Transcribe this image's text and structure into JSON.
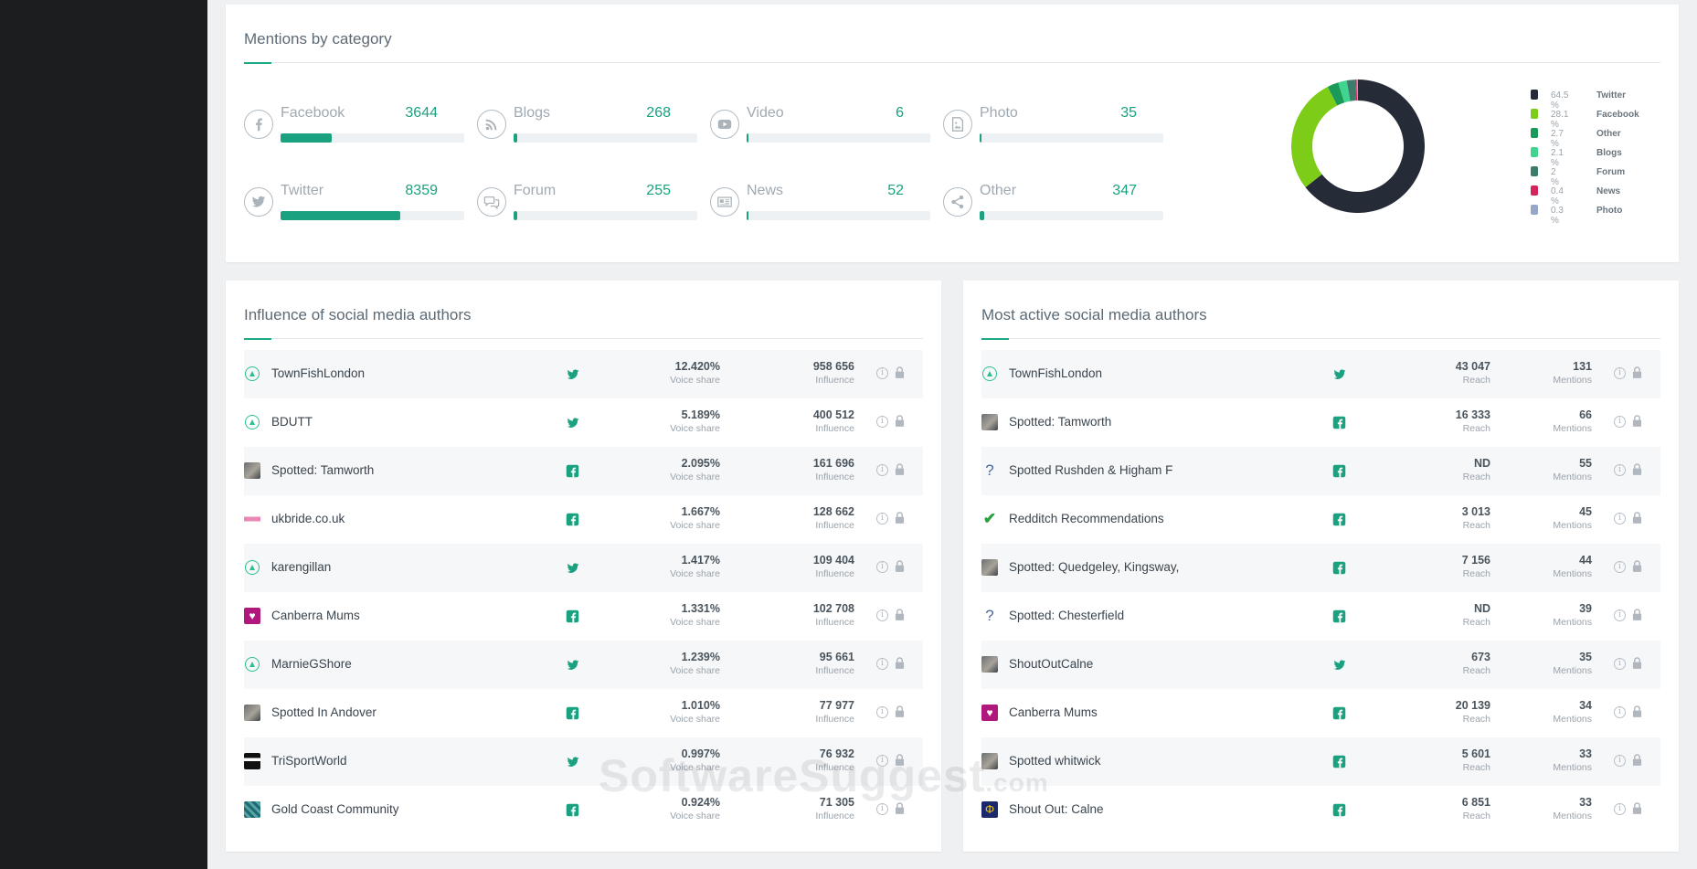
{
  "categories_card": {
    "title": "Mentions by category",
    "items": [
      {
        "name": "Facebook",
        "count": "3644",
        "fill": 0.28,
        "icon": "facebook-icon"
      },
      {
        "name": "Blogs",
        "count": "268",
        "fill": 0.02,
        "icon": "rss-icon"
      },
      {
        "name": "Video",
        "count": "6",
        "fill": 0.0,
        "icon": "video-icon"
      },
      {
        "name": "Photo",
        "count": "35",
        "fill": 0.005,
        "icon": "photo-icon"
      },
      {
        "name": "Twitter",
        "count": "8359",
        "fill": 0.65,
        "icon": "twitter-icon"
      },
      {
        "name": "Forum",
        "count": "255",
        "fill": 0.02,
        "icon": "forum-icon"
      },
      {
        "name": "News",
        "count": "52",
        "fill": 0.005,
        "icon": "news-icon"
      },
      {
        "name": "Other",
        "count": "347",
        "fill": 0.025,
        "icon": "share-icon"
      }
    ]
  },
  "chart_data": {
    "type": "pie",
    "title": "",
    "categories": [
      "Twitter",
      "Facebook",
      "Other",
      "Blogs",
      "Forum",
      "News",
      "Photo"
    ],
    "values": [
      64.5,
      28.1,
      2.7,
      2.1,
      2,
      0.4,
      0.3
    ],
    "labels": [
      "64.5 %",
      "28.1 %",
      "2.7 %",
      "2.1 %",
      "2 %",
      "0.4 %",
      "0.3 %"
    ],
    "colors": [
      "#252c38",
      "#7dcc18",
      "#1a9a58",
      "#3fd58e",
      "#3b7d6a",
      "#d6245b",
      "#98a6c8"
    ],
    "legend": "right"
  },
  "influence_card": {
    "title": "Influence of social media authors",
    "sub1": "Voice share",
    "sub2": "Influence",
    "rows": [
      {
        "name": "TownFishLondon",
        "net": "twitter",
        "avatar": "circle",
        "v1": "12.420%",
        "v2": "958 656"
      },
      {
        "name": "BDUTT",
        "net": "twitter",
        "avatar": "circle",
        "v1": "5.189%",
        "v2": "400 512"
      },
      {
        "name": "Spotted: Tamworth",
        "net": "facebook",
        "avatar": "photo",
        "v1": "2.095%",
        "v2": "161 696"
      },
      {
        "name": "ukbride.co.uk",
        "net": "facebook",
        "avatar": "pink",
        "v1": "1.667%",
        "v2": "128 662"
      },
      {
        "name": "karengillan",
        "net": "twitter",
        "avatar": "circle",
        "v1": "1.417%",
        "v2": "109 404"
      },
      {
        "name": "Canberra Mums",
        "net": "facebook",
        "avatar": "heart",
        "v1": "1.331%",
        "v2": "102 708"
      },
      {
        "name": "MarnieGShore",
        "net": "twitter",
        "avatar": "circle",
        "v1": "1.239%",
        "v2": "95 661"
      },
      {
        "name": "Spotted In Andover",
        "net": "facebook",
        "avatar": "photo",
        "v1": "1.010%",
        "v2": "77 977"
      },
      {
        "name": "TriSportWorld",
        "net": "twitter",
        "avatar": "dark",
        "v1": "0.997%",
        "v2": "76 932"
      },
      {
        "name": "Gold Coast Community",
        "net": "facebook",
        "avatar": "teal",
        "v1": "0.924%",
        "v2": "71 305"
      }
    ]
  },
  "active_card": {
    "title": "Most active social media authors",
    "sub1": "Reach",
    "sub2": "Mentions",
    "rows": [
      {
        "name": "TownFishLondon",
        "net": "twitter",
        "avatar": "circle",
        "v1": "43 047",
        "v2": "131"
      },
      {
        "name": "Spotted: Tamworth",
        "net": "facebook",
        "avatar": "photo",
        "v1": "16 333",
        "v2": "66"
      },
      {
        "name": "Spotted Rushden & Higham F",
        "net": "facebook",
        "avatar": "question",
        "v1": "ND",
        "v2": "55"
      },
      {
        "name": "Redditch Recommendations",
        "net": "facebook",
        "avatar": "check",
        "v1": "3 013",
        "v2": "45"
      },
      {
        "name": "Spotted: Quedgeley, Kingsway,",
        "net": "facebook",
        "avatar": "photo",
        "v1": "7 156",
        "v2": "44"
      },
      {
        "name": "Spotted: Chesterfield",
        "net": "facebook",
        "avatar": "question",
        "v1": "ND",
        "v2": "39"
      },
      {
        "name": "ShoutOutCalne",
        "net": "twitter",
        "avatar": "photo",
        "v1": "673",
        "v2": "35"
      },
      {
        "name": "Canberra Mums",
        "net": "facebook",
        "avatar": "heart",
        "v1": "20 139",
        "v2": "34"
      },
      {
        "name": "Spotted whitwick",
        "net": "facebook",
        "avatar": "photo",
        "v1": "5 601",
        "v2": "33"
      },
      {
        "name": "Shout Out: Calne",
        "net": "facebook",
        "avatar": "navy",
        "v1": "6 851",
        "v2": "33"
      }
    ]
  },
  "watermark": {
    "main": "SoftwareSuggest",
    "suffix": ".com"
  },
  "colors": {
    "accent": "#1aa17f",
    "twitter": "#1aa17f",
    "facebook": "#1aa17f"
  }
}
